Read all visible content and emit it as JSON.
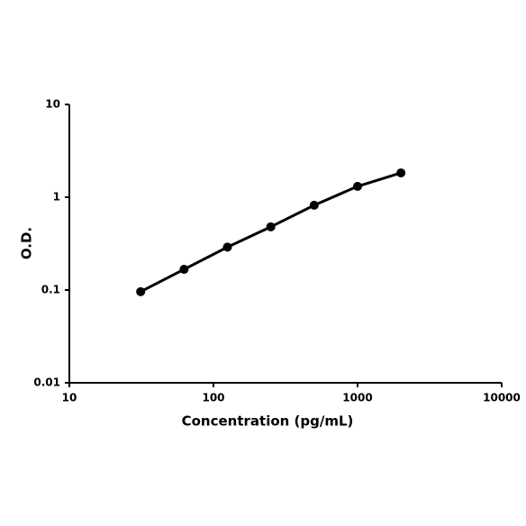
{
  "chart_data": {
    "type": "line",
    "x_label": "Concentration (pg/mL)",
    "y_label": "O.D.",
    "x": [
      31.25,
      62.5,
      125,
      250,
      500,
      1000,
      2000
    ],
    "series": [
      {
        "color": "#000000",
        "values": [
          0.096,
          0.167,
          0.29,
          0.48,
          0.82,
          1.31,
          1.83
        ]
      }
    ],
    "xlim": [
      10,
      10000
    ],
    "xticks": [
      10,
      100,
      1000,
      10000
    ],
    "ylim": [
      0.01,
      10
    ],
    "yticks": [
      0.01,
      0.1,
      1,
      10
    ],
    "xscale": "log",
    "yscale": "log",
    "markers": true
  }
}
